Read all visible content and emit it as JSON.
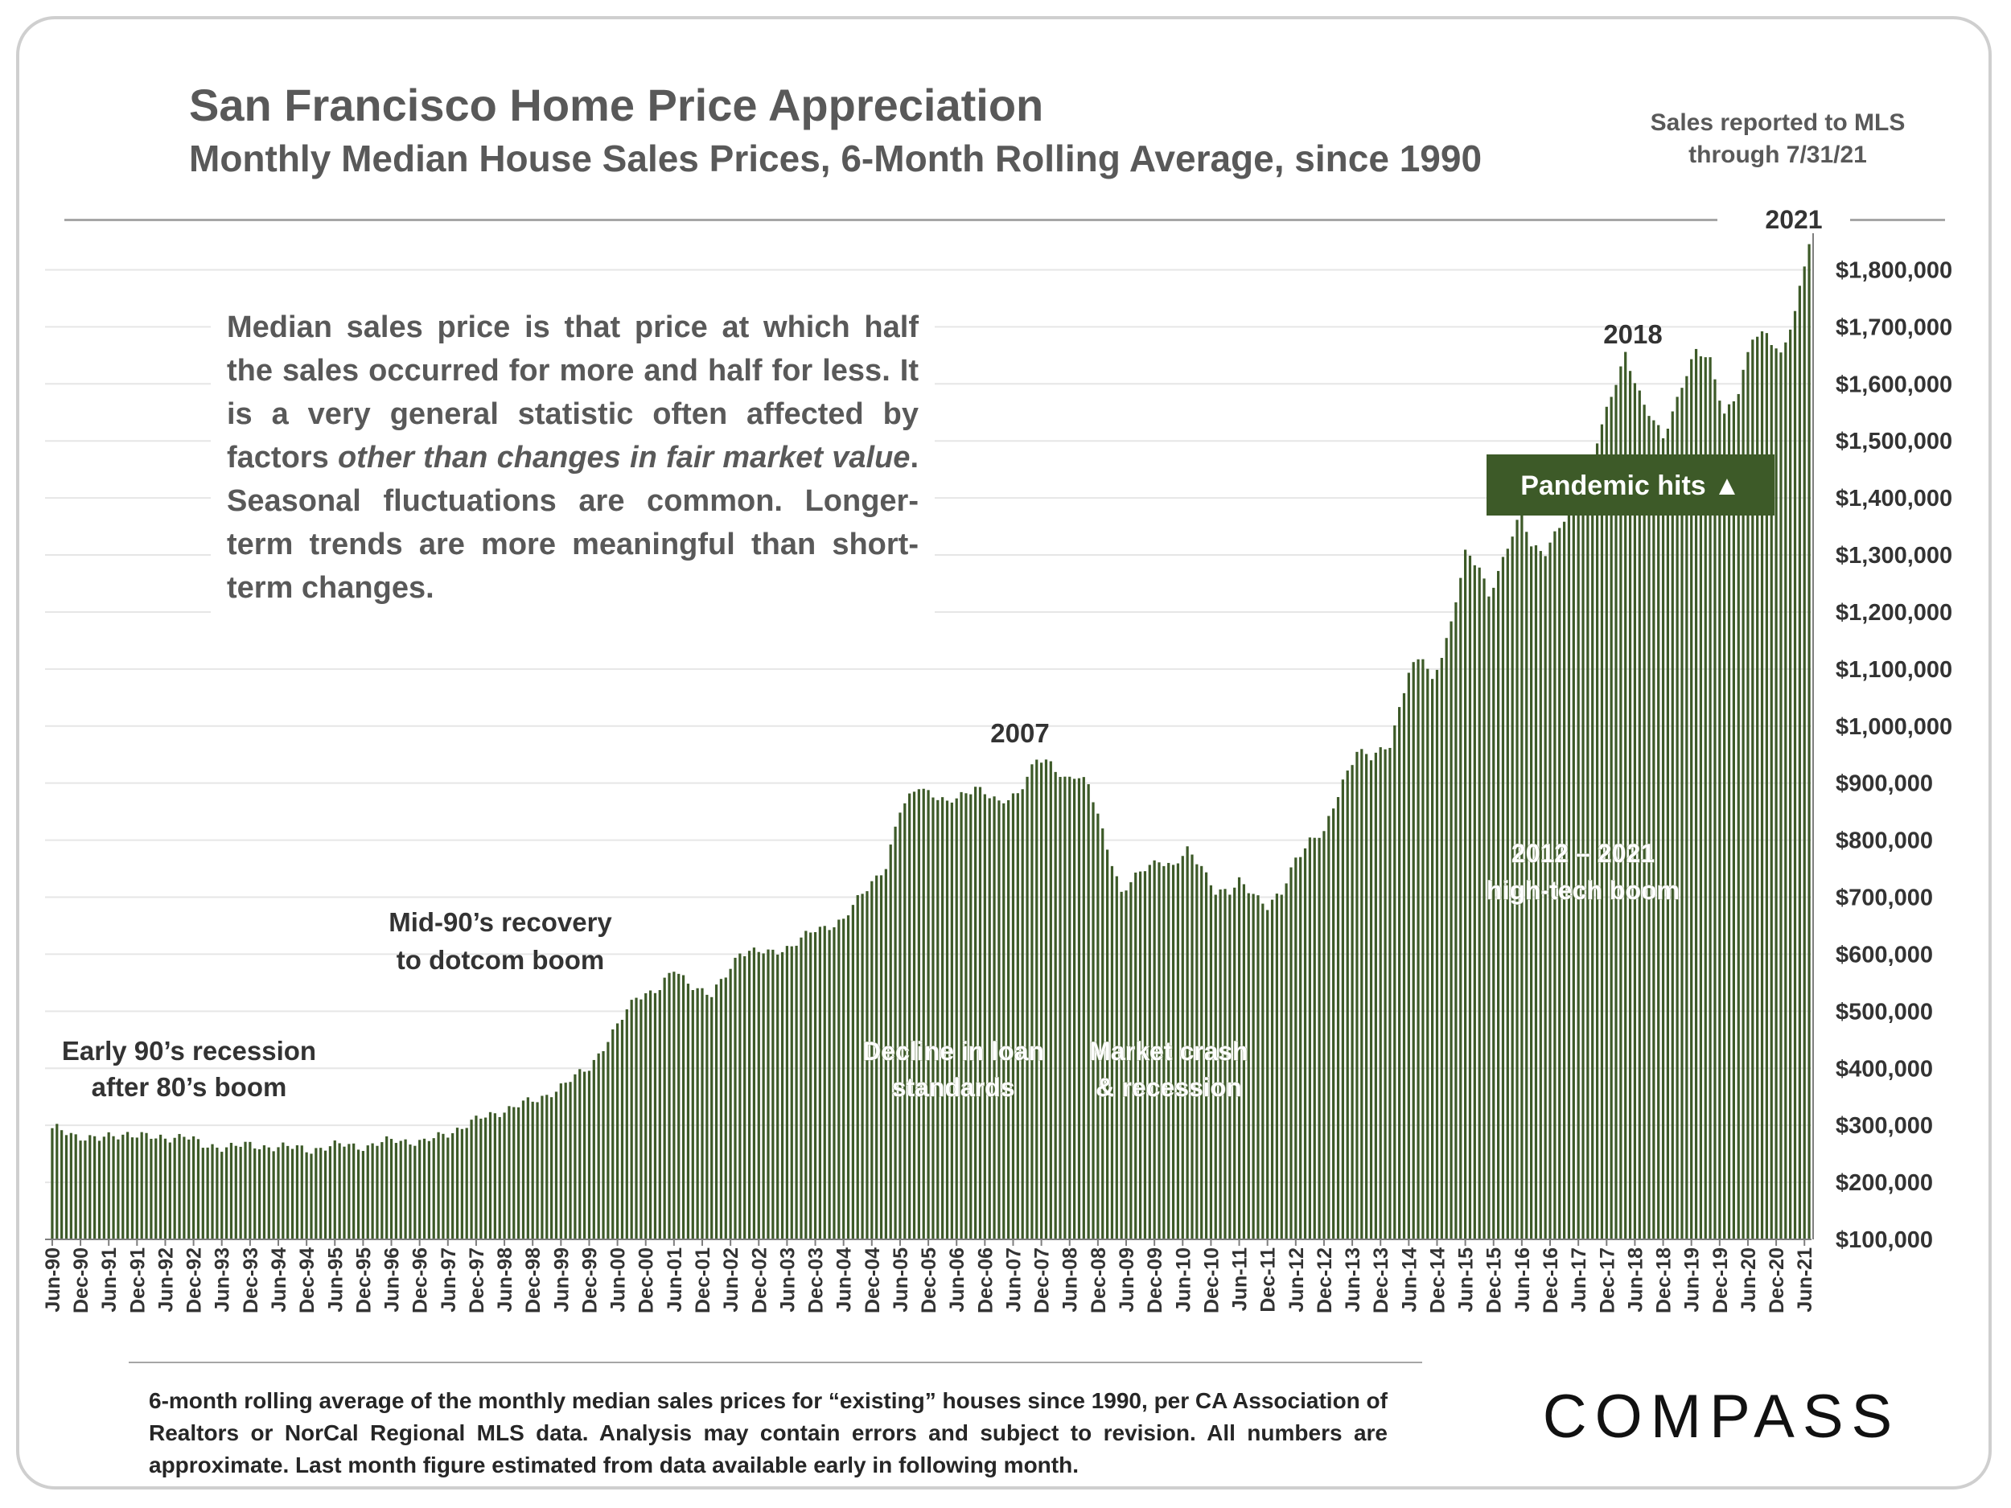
{
  "header": {
    "title": "San Francisco Home Price Appreciation",
    "subtitle": "Monthly Median House Sales Prices, 6-Month Rolling Average, since 1990",
    "note_line1": "Sales reported to MLS",
    "note_line2": "through 7/31/21"
  },
  "explanation": {
    "part1": "Median sales price is that price at which half the sales occurred for more and half for less. It is a very general statistic often affected by factors ",
    "italic1": "other than changes in fair market value",
    "part2": ". Seasonal fluctuations are common. Longer-term trends are more meaningful than short-term changes."
  },
  "footnote": "6-month rolling average of the monthly median sales prices for “existing” houses since 1990, per CA Association of Realtors or NorCal Regional MLS data.  Analysis may contain errors and subject to revision. All numbers are approximate. Last month figure estimated from data available early in following month.",
  "brand": "COMPASS",
  "colors": {
    "bar": "#3d5a28",
    "badge": "#3d5a28",
    "grid": "#e6e6e6",
    "rule": "#a6a6a6"
  },
  "chart_data": {
    "type": "bar",
    "title": "San Francisco Home Price Appreciation",
    "subtitle": "Monthly Median House Sales Prices, 6-Month Rolling Average, since 1990",
    "start": "Jun-90",
    "end": "Jul-21",
    "frequency": "monthly",
    "ylim": [
      100000,
      1850000
    ],
    "yticks": [
      "$100,000",
      "$200,000",
      "$300,000",
      "$400,000",
      "$500,000",
      "$600,000",
      "$700,000",
      "$800,000",
      "$900,000",
      "$1,000,000",
      "$1,100,000",
      "$1,200,000",
      "$1,300,000",
      "$1,400,000",
      "$1,500,000",
      "$1,600,000",
      "$1,700,000",
      "$1,800,000"
    ],
    "ytick_values": [
      100000,
      200000,
      300000,
      400000,
      500000,
      600000,
      700000,
      800000,
      900000,
      1000000,
      1100000,
      1200000,
      1300000,
      1400000,
      1500000,
      1600000,
      1700000,
      1800000
    ],
    "xtick_labels": [
      "Jun-90",
      "Dec-90",
      "Jun-91",
      "Dec-91",
      "Jun-92",
      "Dec-92",
      "Jun-93",
      "Dec-93",
      "Jun-94",
      "Dec-94",
      "Jun-95",
      "Dec-95",
      "Jun-96",
      "Dec-96",
      "Jun-97",
      "Dec-97",
      "Jun-98",
      "Dec-98",
      "Jun-99",
      "Dec-99",
      "Jun-00",
      "Dec-00",
      "Jun-01",
      "Dec-01",
      "Jun-02",
      "Dec-02",
      "Jun-03",
      "Dec-03",
      "Jun-04",
      "Dec-04",
      "Jun-05",
      "Dec-05",
      "Jun-06",
      "Dec-06",
      "Jun-07",
      "Dec-07",
      "Jun-08",
      "Dec-08",
      "Jun-09",
      "Dec-09",
      "Jun-10",
      "Dec-10",
      "Jun-11",
      "Dec-11",
      "Jun-12",
      "Dec-12",
      "Jun-13",
      "Dec-13",
      "Jun-14",
      "Dec-14",
      "Jun-15",
      "Dec-15",
      "Jun-16",
      "Dec-16",
      "Jun-17",
      "Dec-17",
      "Jun-18",
      "Dec-18",
      "Jun-19",
      "Dec-19",
      "Jun-20",
      "Dec-20",
      "Jun-21"
    ],
    "grid": true,
    "legend": "none",
    "keypoints": [
      [
        "Jun-90",
        295000
      ],
      [
        "Nov-90",
        283000
      ],
      [
        "Apr-91",
        275000
      ],
      [
        "Oct-91",
        287000
      ],
      [
        "Apr-92",
        276000
      ],
      [
        "Oct-92",
        283000
      ],
      [
        "Feb-93",
        263000
      ],
      [
        "Oct-93",
        264000
      ],
      [
        "May-94",
        263000
      ],
      [
        "Jan-95",
        258000
      ],
      [
        "Aug-95",
        266000
      ],
      [
        "Jan-96",
        263000
      ],
      [
        "Jul-96",
        275000
      ],
      [
        "Jan-97",
        270000
      ],
      [
        "Jul-97",
        290000
      ],
      [
        "Jan-98",
        312000
      ],
      [
        "Jul-98",
        330000
      ],
      [
        "Jan-99",
        345000
      ],
      [
        "Jul-99",
        372000
      ],
      [
        "Dec-99",
        403000
      ],
      [
        "May-00",
        460000
      ],
      [
        "Oct-00",
        528000
      ],
      [
        "Mar-01",
        538000
      ],
      [
        "Jun-01",
        573000
      ],
      [
        "Nov-01",
        540000
      ],
      [
        "Feb-02",
        525000
      ],
      [
        "Aug-02",
        605000
      ],
      [
        "Feb-03",
        602000
      ],
      [
        "Jul-03",
        615000
      ],
      [
        "Dec-03",
        642000
      ],
      [
        "Jun-04",
        660000
      ],
      [
        "Dec-04",
        728000
      ],
      [
        "Mar-05",
        755000
      ],
      [
        "Jun-05",
        850000
      ],
      [
        "Oct-05",
        898000
      ],
      [
        "Apr-06",
        862000
      ],
      [
        "Oct-06",
        896000
      ],
      [
        "Mar-07",
        862000
      ],
      [
        "Jul-07",
        885000
      ],
      [
        "Nov-07",
        940000
      ],
      [
        "Feb-08",
        932000
      ],
      [
        "May-08",
        910000
      ],
      [
        "Jul-08",
        915000
      ],
      [
        "Oct-08",
        895000
      ],
      [
        "Feb-09",
        790000
      ],
      [
        "May-09",
        708000
      ],
      [
        "Oct-09",
        750000
      ],
      [
        "Jan-10",
        768000
      ],
      [
        "Apr-10",
        752000
      ],
      [
        "Jul-10",
        780000
      ],
      [
        "Oct-10",
        757000
      ],
      [
        "Jan-11",
        711000
      ],
      [
        "Apr-11",
        705000
      ],
      [
        "Jun-11",
        728000
      ],
      [
        "Sep-11",
        710000
      ],
      [
        "Dec-11",
        682000
      ],
      [
        "Mar-12",
        705000
      ],
      [
        "Jun-12",
        770000
      ],
      [
        "Sep-12",
        800000
      ],
      [
        "Dec-12",
        810000
      ],
      [
        "Apr-13",
        905000
      ],
      [
        "Jul-13",
        958000
      ],
      [
        "Oct-13",
        942000
      ],
      [
        "Feb-14",
        970000
      ],
      [
        "Jun-14",
        1095000
      ],
      [
        "Sep-14",
        1120000
      ],
      [
        "Nov-14",
        1078000
      ],
      [
        "Mar-15",
        1180000
      ],
      [
        "Jun-15",
        1300000
      ],
      [
        "Sep-15",
        1280000
      ],
      [
        "Nov-15",
        1232000
      ],
      [
        "Feb-16",
        1290000
      ],
      [
        "Jun-16",
        1375000
      ],
      [
        "Aug-16",
        1320000
      ],
      [
        "Nov-16",
        1305000
      ],
      [
        "Mar-17",
        1360000
      ],
      [
        "Jun-17",
        1400000
      ],
      [
        "Dec-17",
        1550000
      ],
      [
        "Apr-18",
        1655000
      ],
      [
        "Aug-18",
        1560000
      ],
      [
        "Dec-18",
        1505000
      ],
      [
        "Apr-19",
        1600000
      ],
      [
        "Jul-19",
        1655000
      ],
      [
        "Oct-19",
        1640000
      ],
      [
        "Jan-20",
        1550000
      ],
      [
        "Apr-20",
        1585000
      ],
      [
        "Jul-20",
        1680000
      ],
      [
        "Oct-20",
        1692000
      ],
      [
        "Jan-21",
        1650000
      ],
      [
        "Apr-21",
        1720000
      ],
      [
        "Jun-21",
        1810000
      ],
      [
        "Jul-21",
        1845000
      ]
    ],
    "annotations": [
      {
        "text": "Early 90’s recession",
        "text2": "after 80’s boom",
        "style": "dark"
      },
      {
        "text": "Mid-90’s recovery",
        "text2": "to dotcom boom",
        "style": "dark"
      },
      {
        "text": "2007",
        "text2": "",
        "style": "dark"
      },
      {
        "text": "2018",
        "text2": "",
        "style": "dark"
      },
      {
        "text": "2021",
        "text2": "",
        "style": "dark"
      },
      {
        "text": "Decline in loan",
        "text2": "standards",
        "style": "light"
      },
      {
        "text": "Market crash",
        "text2": "& recession",
        "style": "light"
      },
      {
        "text": "2012 – 2021",
        "text2": "high-tech boom",
        "style": "light"
      }
    ],
    "badge": "Pandemic hits ▲"
  }
}
